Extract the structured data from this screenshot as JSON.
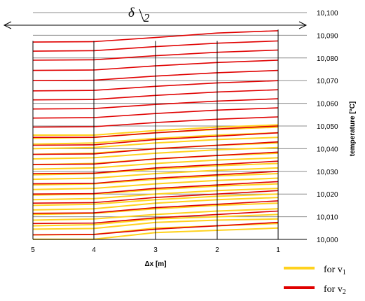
{
  "chart_data": {
    "type": "line",
    "x": [
      5,
      4,
      3,
      2,
      1
    ],
    "xlabel": "Δx [m]",
    "ylabel": "temperature [°C]",
    "ylim": [
      10.0,
      10.1
    ],
    "y_ticks": [
      "10,000",
      "10,010",
      "10,020",
      "10,030",
      "10,040",
      "10,050",
      "10,060",
      "10,070",
      "10,080",
      "10,090",
      "10,100"
    ],
    "x_ticks": [
      "5",
      "4",
      "3",
      "2",
      "1"
    ],
    "annotation": {
      "numerator": "δ",
      "denominator": "2"
    },
    "grid": true,
    "legend_position": "bottom-right",
    "colors": {
      "v1": "#FFD21E",
      "v2": "#E00000",
      "grid": "#000000"
    },
    "series": [
      {
        "name": "for v1",
        "legend_base": "for v",
        "legend_sub": "1",
        "color": "#FFD21E",
        "lines": [
          [
            10.0001,
            10.0001,
            10.003,
            10.004,
            10.005
          ],
          [
            10.002,
            10.0022,
            10.005,
            10.006,
            10.007
          ],
          [
            10.0045,
            10.0048,
            10.0075,
            10.0085,
            10.009
          ],
          [
            10.006,
            10.0065,
            10.009,
            10.01,
            10.011
          ],
          [
            10.0085,
            10.009,
            10.011,
            10.0125,
            10.0135
          ],
          [
            10.011,
            10.0115,
            10.0135,
            10.015,
            10.016
          ],
          [
            10.013,
            10.0135,
            10.016,
            10.0175,
            10.0185
          ],
          [
            10.015,
            10.0155,
            10.0175,
            10.019,
            10.02
          ],
          [
            10.0175,
            10.018,
            10.02,
            10.0215,
            10.0225
          ],
          [
            10.0195,
            10.02,
            10.022,
            10.0235,
            10.0245
          ],
          [
            10.022,
            10.0225,
            10.0245,
            10.026,
            10.027
          ],
          [
            10.024,
            10.0245,
            10.0265,
            10.028,
            10.029
          ],
          [
            10.0265,
            10.027,
            10.029,
            10.0305,
            10.0315
          ],
          [
            10.0285,
            10.029,
            10.031,
            10.0325,
            10.0335
          ],
          [
            10.031,
            10.0315,
            10.0335,
            10.035,
            10.036
          ],
          [
            10.033,
            10.0335,
            10.0355,
            10.037,
            10.038
          ],
          [
            10.0355,
            10.036,
            10.038,
            10.0395,
            10.0405
          ],
          [
            10.0375,
            10.038,
            10.04,
            10.0415,
            10.0425
          ],
          [
            10.04,
            10.0405,
            10.0425,
            10.044,
            10.045
          ],
          [
            10.042,
            10.0425,
            10.0445,
            10.046,
            10.047
          ],
          [
            10.0445,
            10.045,
            10.047,
            10.0485,
            10.0495
          ],
          [
            10.046,
            10.046,
            10.048,
            10.0495,
            10.0505
          ]
        ]
      },
      {
        "name": "for v2",
        "legend_base": "for v",
        "legend_sub": "2",
        "color": "#E00000",
        "lines": [
          [
            10.002,
            10.0022,
            10.0045,
            10.006,
            10.0075
          ],
          [
            10.007,
            10.0072,
            10.0095,
            10.011,
            10.0125
          ],
          [
            10.0115,
            10.0117,
            10.014,
            10.0155,
            10.017
          ],
          [
            10.016,
            10.0162,
            10.0185,
            10.02,
            10.0215
          ],
          [
            10.02,
            10.0202,
            10.0225,
            10.024,
            10.0255
          ],
          [
            10.0245,
            10.0247,
            10.027,
            10.0285,
            10.03
          ],
          [
            10.029,
            10.0292,
            10.0315,
            10.033,
            10.0345
          ],
          [
            10.033,
            10.0332,
            10.0355,
            10.037,
            10.0385
          ],
          [
            10.0375,
            10.0377,
            10.04,
            10.0415,
            10.043
          ],
          [
            10.0415,
            10.0417,
            10.044,
            10.0455,
            10.047
          ],
          [
            10.045,
            10.045,
            10.047,
            10.0487,
            10.05
          ],
          [
            10.0495,
            10.0497,
            10.0515,
            10.053,
            10.054
          ],
          [
            10.0535,
            10.0537,
            10.0555,
            10.057,
            10.058
          ],
          [
            10.0575,
            10.0577,
            10.0595,
            10.061,
            10.062
          ],
          [
            10.0615,
            10.0617,
            10.0635,
            10.065,
            10.066
          ],
          [
            10.0655,
            10.0657,
            10.0675,
            10.069,
            10.07
          ],
          [
            10.07,
            10.0702,
            10.072,
            10.0735,
            10.0745
          ],
          [
            10.0745,
            10.0747,
            10.0765,
            10.078,
            10.079
          ],
          [
            10.079,
            10.0792,
            10.081,
            10.0825,
            10.0835
          ],
          [
            10.083,
            10.0832,
            10.085,
            10.0865,
            10.0875
          ],
          [
            10.087,
            10.0872,
            10.089,
            10.091,
            10.092
          ]
        ]
      }
    ]
  }
}
